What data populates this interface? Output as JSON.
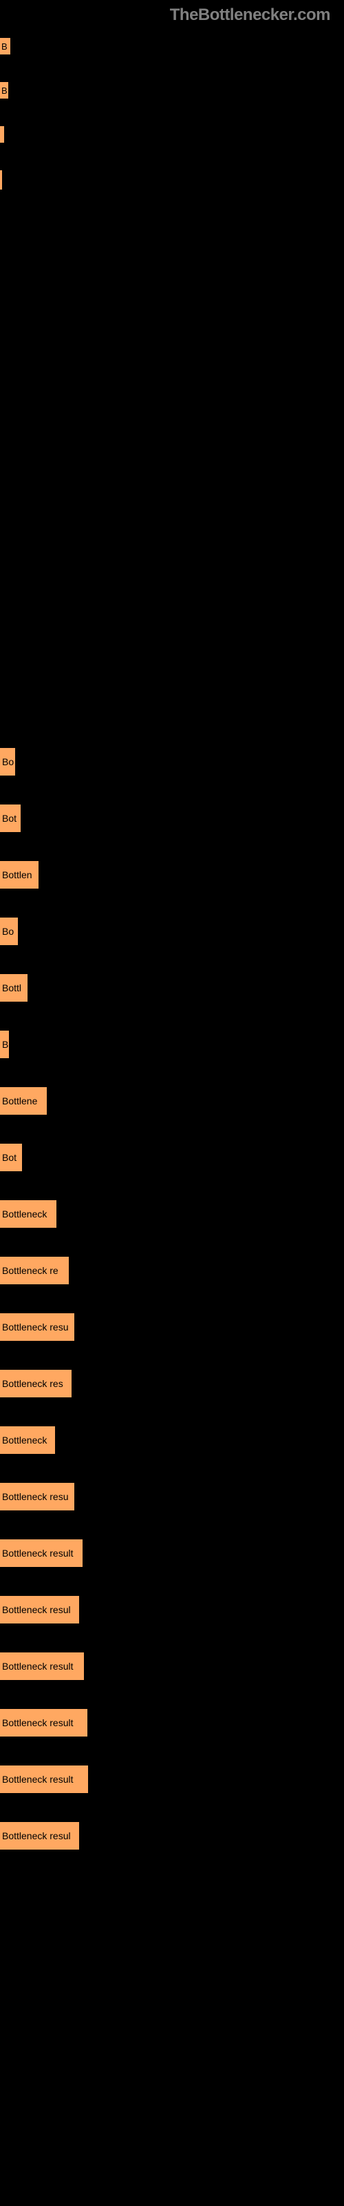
{
  "watermark": "TheBottlenecker.com",
  "topBars": [
    {
      "label": "B",
      "width": 15
    },
    {
      "label": "B",
      "width": 12
    },
    {
      "label": "",
      "width": 6
    },
    {
      "label": "",
      "width": 3
    }
  ],
  "resultBars": [
    {
      "label": "Bo",
      "width": 22
    },
    {
      "label": "Bot",
      "width": 30
    },
    {
      "label": "Bottlen",
      "width": 56
    },
    {
      "label": "Bo",
      "width": 26
    },
    {
      "label": "Bottl",
      "width": 40
    },
    {
      "label": "B",
      "width": 13
    },
    {
      "label": "Bottlene",
      "width": 68
    },
    {
      "label": "Bot",
      "width": 32
    },
    {
      "label": "Bottleneck",
      "width": 82
    },
    {
      "label": "Bottleneck re",
      "width": 100
    },
    {
      "label": "Bottleneck resu",
      "width": 108
    },
    {
      "label": "Bottleneck res",
      "width": 104
    },
    {
      "label": "Bottleneck",
      "width": 80
    },
    {
      "label": "Bottleneck resu",
      "width": 108
    },
    {
      "label": "Bottleneck result",
      "width": 120
    },
    {
      "label": "Bottleneck resul",
      "width": 115
    },
    {
      "label": "Bottleneck result",
      "width": 122
    },
    {
      "label": "Bottleneck result",
      "width": 127
    },
    {
      "label": "Bottleneck result",
      "width": 128
    },
    {
      "label": "Bottleneck resul",
      "width": 115
    }
  ],
  "colors": {
    "background": "#000000",
    "bar": "#ffa861",
    "watermark": "#808080",
    "text": "#000000"
  }
}
